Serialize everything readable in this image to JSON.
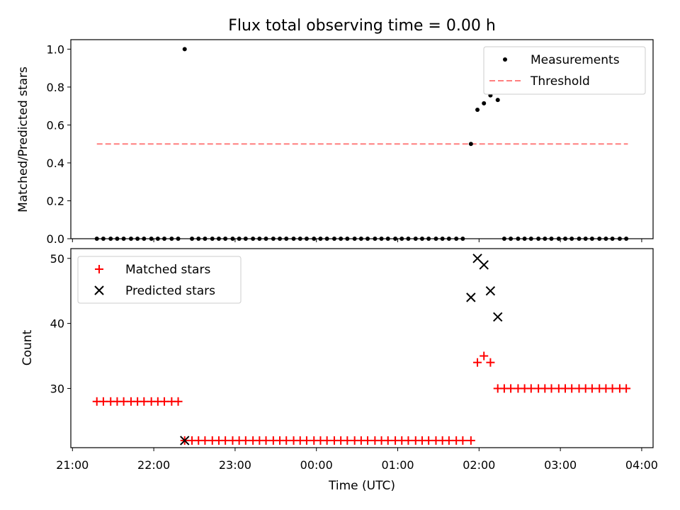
{
  "figure_title": "Flux total observing time = 0.00 h",
  "colors": {
    "matched": "#ff0000",
    "predicted": "#000000",
    "measurement": "#000000",
    "threshold": "#ff7f7f"
  },
  "x_axis": {
    "label": "Time (UTC)",
    "ticks": [
      {
        "hours": 21,
        "label": "21:00"
      },
      {
        "hours": 22,
        "label": "22:00"
      },
      {
        "hours": 23,
        "label": "23:00"
      },
      {
        "hours": 24,
        "label": "00:00"
      },
      {
        "hours": 25,
        "label": "01:00"
      },
      {
        "hours": 26,
        "label": "02:00"
      },
      {
        "hours": 27,
        "label": "03:00"
      },
      {
        "hours": 28,
        "label": "04:00"
      }
    ],
    "range_hours": [
      20.98,
      28.14
    ]
  },
  "chart_data": [
    {
      "type": "scatter",
      "ylabel": "Matched/Predicted stars",
      "ylim": [
        0,
        1.05
      ],
      "yticks": [
        "0.0",
        "0.2",
        "0.4",
        "0.6",
        "0.8",
        "1.0"
      ],
      "legend_position": "upper-right",
      "series": [
        {
          "name": "Measurements",
          "marker": "dot",
          "points": [
            [
              21.3,
              0
            ],
            [
              21.38,
              0
            ],
            [
              21.47,
              0
            ],
            [
              21.55,
              0
            ],
            [
              21.63,
              0
            ],
            [
              21.72,
              0
            ],
            [
              21.8,
              0
            ],
            [
              21.88,
              0
            ],
            [
              21.97,
              0
            ],
            [
              22.05,
              0
            ],
            [
              22.13,
              0
            ],
            [
              22.22,
              0
            ],
            [
              22.3,
              0
            ],
            [
              22.38,
              1.0
            ],
            [
              22.47,
              0
            ],
            [
              22.55,
              0
            ],
            [
              22.63,
              0
            ],
            [
              22.72,
              0
            ],
            [
              22.8,
              0
            ],
            [
              22.88,
              0
            ],
            [
              22.97,
              0
            ],
            [
              23.05,
              0
            ],
            [
              23.13,
              0
            ],
            [
              23.22,
              0
            ],
            [
              23.3,
              0
            ],
            [
              23.38,
              0
            ],
            [
              23.47,
              0
            ],
            [
              23.55,
              0
            ],
            [
              23.63,
              0
            ],
            [
              23.72,
              0
            ],
            [
              23.8,
              0
            ],
            [
              23.88,
              0
            ],
            [
              23.97,
              0
            ],
            [
              24.05,
              0
            ],
            [
              24.13,
              0
            ],
            [
              24.22,
              0
            ],
            [
              24.3,
              0
            ],
            [
              24.38,
              0
            ],
            [
              24.47,
              0
            ],
            [
              24.55,
              0
            ],
            [
              24.63,
              0
            ],
            [
              24.72,
              0
            ],
            [
              24.8,
              0
            ],
            [
              24.88,
              0
            ],
            [
              24.97,
              0
            ],
            [
              25.05,
              0
            ],
            [
              25.13,
              0
            ],
            [
              25.22,
              0
            ],
            [
              25.3,
              0
            ],
            [
              25.38,
              0
            ],
            [
              25.47,
              0
            ],
            [
              25.55,
              0
            ],
            [
              25.63,
              0
            ],
            [
              25.72,
              0
            ],
            [
              25.8,
              0
            ],
            [
              25.9,
              0.5
            ],
            [
              25.98,
              0.68
            ],
            [
              26.06,
              0.714
            ],
            [
              26.14,
              0.756
            ],
            [
              26.23,
              0.732
            ],
            [
              26.31,
              0
            ],
            [
              26.39,
              0
            ],
            [
              26.48,
              0
            ],
            [
              26.56,
              0
            ],
            [
              26.64,
              0
            ],
            [
              26.73,
              0
            ],
            [
              26.81,
              0
            ],
            [
              26.89,
              0
            ],
            [
              26.98,
              0
            ],
            [
              27.06,
              0
            ],
            [
              27.14,
              0
            ],
            [
              27.23,
              0
            ],
            [
              27.31,
              0
            ],
            [
              27.39,
              0
            ],
            [
              27.48,
              0
            ],
            [
              27.56,
              0
            ],
            [
              27.64,
              0
            ],
            [
              27.73,
              0
            ],
            [
              27.81,
              0
            ]
          ]
        },
        {
          "name": "Threshold",
          "style": "dashed",
          "points": [
            [
              21.3,
              0.5
            ],
            [
              27.83,
              0.5
            ]
          ]
        }
      ]
    },
    {
      "type": "scatter",
      "ylabel": "Count",
      "ylim": [
        20.9,
        51.5
      ],
      "yticks": [
        {
          "value": 30,
          "label": "30"
        },
        {
          "value": 40,
          "label": "40"
        },
        {
          "value": 50,
          "label": "50"
        }
      ],
      "legend_position": "upper-left",
      "series": [
        {
          "name": "Matched stars",
          "marker": "plus",
          "points": [
            [
              21.3,
              28
            ],
            [
              21.38,
              28
            ],
            [
              21.47,
              28
            ],
            [
              21.55,
              28
            ],
            [
              21.63,
              28
            ],
            [
              21.72,
              28
            ],
            [
              21.8,
              28
            ],
            [
              21.88,
              28
            ],
            [
              21.97,
              28
            ],
            [
              22.05,
              28
            ],
            [
              22.13,
              28
            ],
            [
              22.22,
              28
            ],
            [
              22.3,
              28
            ],
            [
              22.38,
              22
            ],
            [
              22.47,
              22
            ],
            [
              22.55,
              22
            ],
            [
              22.63,
              22
            ],
            [
              22.72,
              22
            ],
            [
              22.8,
              22
            ],
            [
              22.88,
              22
            ],
            [
              22.97,
              22
            ],
            [
              23.05,
              22
            ],
            [
              23.13,
              22
            ],
            [
              23.22,
              22
            ],
            [
              23.3,
              22
            ],
            [
              23.38,
              22
            ],
            [
              23.47,
              22
            ],
            [
              23.55,
              22
            ],
            [
              23.63,
              22
            ],
            [
              23.72,
              22
            ],
            [
              23.8,
              22
            ],
            [
              23.88,
              22
            ],
            [
              23.97,
              22
            ],
            [
              24.05,
              22
            ],
            [
              24.13,
              22
            ],
            [
              24.22,
              22
            ],
            [
              24.3,
              22
            ],
            [
              24.38,
              22
            ],
            [
              24.47,
              22
            ],
            [
              24.55,
              22
            ],
            [
              24.63,
              22
            ],
            [
              24.72,
              22
            ],
            [
              24.8,
              22
            ],
            [
              24.88,
              22
            ],
            [
              24.97,
              22
            ],
            [
              25.05,
              22
            ],
            [
              25.13,
              22
            ],
            [
              25.22,
              22
            ],
            [
              25.3,
              22
            ],
            [
              25.38,
              22
            ],
            [
              25.47,
              22
            ],
            [
              25.55,
              22
            ],
            [
              25.63,
              22
            ],
            [
              25.72,
              22
            ],
            [
              25.8,
              22
            ],
            [
              25.9,
              22
            ],
            [
              25.98,
              34
            ],
            [
              26.06,
              35
            ],
            [
              26.14,
              34
            ],
            [
              26.23,
              30
            ],
            [
              26.31,
              30
            ],
            [
              26.39,
              30
            ],
            [
              26.48,
              30
            ],
            [
              26.56,
              30
            ],
            [
              26.64,
              30
            ],
            [
              26.73,
              30
            ],
            [
              26.81,
              30
            ],
            [
              26.89,
              30
            ],
            [
              26.98,
              30
            ],
            [
              27.06,
              30
            ],
            [
              27.14,
              30
            ],
            [
              27.23,
              30
            ],
            [
              27.31,
              30
            ],
            [
              27.39,
              30
            ],
            [
              27.48,
              30
            ],
            [
              27.56,
              30
            ],
            [
              27.64,
              30
            ],
            [
              27.73,
              30
            ],
            [
              27.81,
              30
            ]
          ]
        },
        {
          "name": "Predicted stars",
          "marker": "x",
          "points": [
            [
              22.38,
              22
            ],
            [
              25.9,
              44
            ],
            [
              25.98,
              50
            ],
            [
              26.06,
              49
            ],
            [
              26.14,
              45
            ],
            [
              26.23,
              41
            ]
          ]
        }
      ]
    }
  ]
}
